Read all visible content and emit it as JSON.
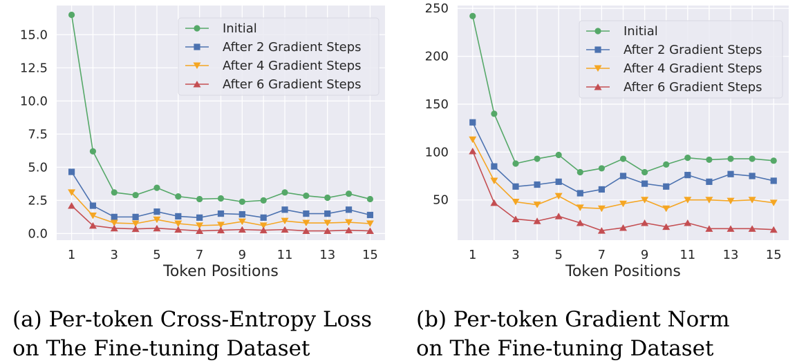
{
  "chart_data": [
    {
      "type": "line",
      "caption_lines": [
        "(a) Per-token Cross-Entropy Loss",
        "on The Fine-tuning Dataset"
      ],
      "xlabel": "Token Positions",
      "ylabel": "",
      "x": [
        1,
        2,
        3,
        4,
        5,
        6,
        7,
        8,
        9,
        10,
        11,
        12,
        13,
        14,
        15
      ],
      "xticks": [
        1,
        3,
        5,
        7,
        9,
        11,
        13,
        15
      ],
      "yticks": [
        0.0,
        2.5,
        5.0,
        7.5,
        10.0,
        12.5,
        15.0
      ],
      "ytick_labels": [
        "0.0",
        "2.5",
        "5.0",
        "7.5",
        "10.0",
        "12.5",
        "15.0"
      ],
      "ylim": [
        -0.5,
        17.2
      ],
      "xlim": [
        0.3,
        15.7
      ],
      "grid": true,
      "legend_position": "top-right",
      "series": [
        {
          "name": "Initial",
          "color": "#55a868",
          "marker": "circle",
          "values": [
            16.5,
            6.2,
            3.1,
            2.9,
            3.45,
            2.8,
            2.6,
            2.65,
            2.4,
            2.5,
            3.1,
            2.85,
            2.7,
            3.0,
            2.6
          ]
        },
        {
          "name": "After 2 Gradient Steps",
          "color": "#4c72b0",
          "marker": "square",
          "values": [
            4.65,
            2.1,
            1.25,
            1.25,
            1.65,
            1.3,
            1.2,
            1.5,
            1.45,
            1.2,
            1.8,
            1.5,
            1.5,
            1.8,
            1.4
          ]
        },
        {
          "name": "After 4 Gradient Steps",
          "color": "#f5a623",
          "marker": "triangle-down",
          "values": [
            3.1,
            1.35,
            0.8,
            0.75,
            1.05,
            0.75,
            0.6,
            0.65,
            0.9,
            0.6,
            0.95,
            0.8,
            0.8,
            0.85,
            0.75
          ]
        },
        {
          "name": "After 6 Gradient Steps",
          "color": "#c44e52",
          "marker": "triangle-up",
          "values": [
            2.1,
            0.6,
            0.4,
            0.35,
            0.4,
            0.3,
            0.2,
            0.25,
            0.3,
            0.25,
            0.3,
            0.2,
            0.2,
            0.25,
            0.2
          ]
        }
      ]
    },
    {
      "type": "line",
      "caption_lines": [
        "(b) Per-token Gradient Norm",
        "on The Fine-tuning Dataset"
      ],
      "xlabel": "Token Positions",
      "ylabel": "",
      "x": [
        1,
        2,
        3,
        4,
        5,
        6,
        7,
        8,
        9,
        10,
        11,
        12,
        13,
        14,
        15
      ],
      "xticks": [
        1,
        3,
        5,
        7,
        9,
        11,
        13,
        15
      ],
      "yticks": [
        50,
        100,
        150,
        200,
        250
      ],
      "ytick_labels": [
        "50",
        "100",
        "150",
        "200",
        "250"
      ],
      "ylim": [
        8,
        253
      ],
      "xlim": [
        0.3,
        15.7
      ],
      "grid": true,
      "legend_position": "top-right",
      "series": [
        {
          "name": "Initial",
          "color": "#55a868",
          "marker": "circle",
          "values": [
            242,
            140,
            88,
            93,
            97,
            79,
            83,
            93,
            79,
            87,
            94,
            92,
            93,
            93,
            91
          ]
        },
        {
          "name": "After 2 Gradient Steps",
          "color": "#4c72b0",
          "marker": "square",
          "values": [
            131,
            85,
            64,
            66,
            69,
            57,
            61,
            75,
            67,
            64,
            76,
            69,
            77,
            75,
            70
          ]
        },
        {
          "name": "After 4 Gradient Steps",
          "color": "#f5a623",
          "marker": "triangle-down",
          "values": [
            113,
            70,
            48,
            45,
            54,
            42,
            41,
            46,
            50,
            41,
            50,
            50,
            49,
            50,
            47
          ]
        },
        {
          "name": "After 6 Gradient Steps",
          "color": "#c44e52",
          "marker": "triangle-up",
          "values": [
            101,
            47,
            30,
            28,
            33,
            26,
            18,
            21,
            26,
            22,
            26,
            20,
            20,
            20,
            19
          ]
        }
      ]
    }
  ]
}
